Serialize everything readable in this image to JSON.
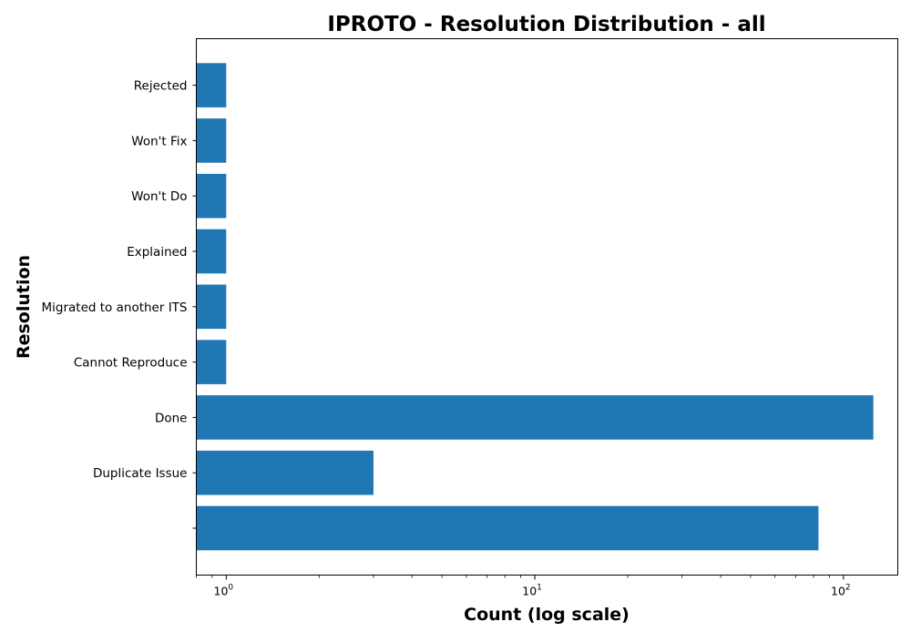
{
  "chart_data": {
    "type": "bar",
    "orientation": "horizontal",
    "title": "IPROTO - Resolution Distribution - all",
    "xlabel": "Count (log scale)",
    "ylabel": "Resolution",
    "xscale": "log",
    "xlim": [
      0.8,
      150
    ],
    "xticks": [
      {
        "value": 1,
        "base": "10",
        "exp": "0"
      },
      {
        "value": 10,
        "base": "10",
        "exp": "1"
      },
      {
        "value": 100,
        "base": "10",
        "exp": "2"
      }
    ],
    "categories": [
      "",
      "Duplicate Issue",
      "Done",
      "Cannot Reproduce",
      "Migrated to another ITS",
      "Explained",
      "Won't Do",
      "Won't Fix",
      "Rejected"
    ],
    "values": [
      83,
      3,
      125,
      1,
      1,
      1,
      1,
      1,
      1
    ],
    "bar_color": "#1f77b4",
    "grid": false,
    "legend": "none"
  }
}
